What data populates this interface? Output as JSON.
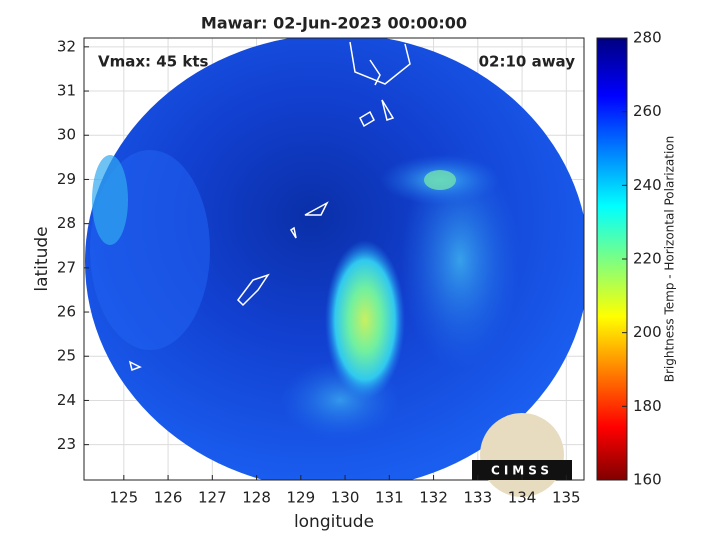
{
  "title": "Mawar: 02-Jun-2023 00:00:00",
  "annotations": {
    "vmax": "Vmax: 45 kts",
    "away": "02:10 away"
  },
  "map": {
    "xlabel": "longitude",
    "ylabel": "latitude",
    "xlim": [
      124.1,
      135.4
    ],
    "ylim": [
      22.2,
      32.2
    ],
    "xticks": [
      125,
      126,
      127,
      128,
      129,
      130,
      131,
      132,
      133,
      134,
      135
    ],
    "yticks": [
      23,
      24,
      25,
      26,
      27,
      28,
      29,
      30,
      31,
      32
    ],
    "grid": true
  },
  "colorbar": {
    "label": "Brightness Temp - Horizontal Polarization",
    "lim": [
      160,
      280
    ],
    "ticks": [
      160,
      180,
      200,
      220,
      240,
      260,
      280
    ]
  },
  "logo": "CIMSS"
}
